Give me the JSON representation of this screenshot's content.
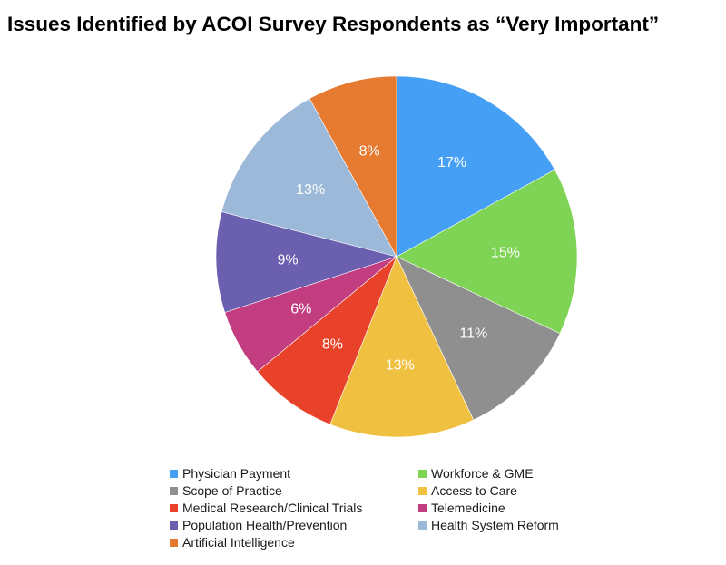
{
  "chart_data": {
    "type": "pie",
    "title": "Issues Identified by ACOI Survey Respondents as “Very Important”",
    "slices": [
      {
        "label": "Physician Payment",
        "value": 17,
        "display": "17%",
        "color": "#45a0f5"
      },
      {
        "label": "Workforce & GME",
        "value": 15,
        "display": "15%",
        "color": "#80d455"
      },
      {
        "label": "Scope of Practice",
        "value": 11,
        "display": "11%",
        "color": "#8f8f8f"
      },
      {
        "label": "Access to Care",
        "value": 13,
        "display": "13%",
        "color": "#f0c040"
      },
      {
        "label": "Medical Research/Clinical Trials",
        "value": 8,
        "display": "8%",
        "color": "#e8432a"
      },
      {
        "label": "Telemedicine",
        "value": 6,
        "display": "6%",
        "color": "#c23e80"
      },
      {
        "label": "Population Health/Prevention",
        "value": 9,
        "display": "9%",
        "color": "#6b5fb0"
      },
      {
        "label": "Health System Reform",
        "value": 13,
        "display": "13%",
        "color": "#9db9da"
      },
      {
        "label": "Artificial Intelligence",
        "value": 8,
        "display": "8%",
        "color": "#e57a30"
      }
    ],
    "legend_position": "bottom"
  }
}
